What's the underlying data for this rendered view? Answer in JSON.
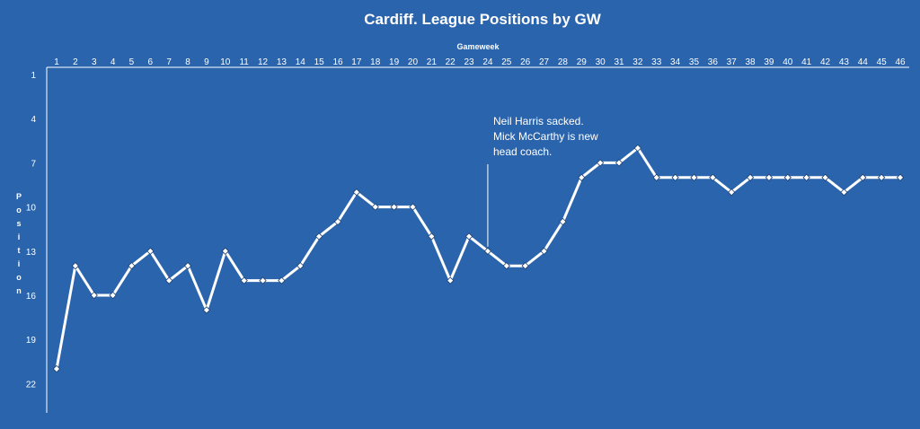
{
  "chart_data": {
    "type": "line",
    "title": "Cardiff. League Positions by GW",
    "xlabel": "Gameweek",
    "ylabel": "Position",
    "x": [
      1,
      2,
      3,
      4,
      5,
      6,
      7,
      8,
      9,
      10,
      11,
      12,
      13,
      14,
      15,
      16,
      17,
      18,
      19,
      20,
      21,
      22,
      23,
      24,
      25,
      26,
      27,
      28,
      29,
      30,
      31,
      32,
      33,
      34,
      35,
      36,
      37,
      38,
      39,
      40,
      41,
      42,
      43,
      44,
      45,
      46
    ],
    "series": [
      {
        "values": [
          21,
          14,
          16,
          16,
          14,
          13,
          15,
          14,
          17,
          13,
          15,
          15,
          15,
          14,
          12,
          11,
          9,
          10,
          10,
          10,
          12,
          15,
          12,
          13,
          14,
          14,
          13,
          11,
          8,
          7,
          7,
          6,
          8,
          8,
          8,
          8,
          9,
          8,
          8,
          8,
          8,
          8,
          9,
          8,
          8,
          8
        ]
      }
    ],
    "yticks": [
      1,
      4,
      7,
      10,
      13,
      16,
      19,
      22
    ],
    "ylim": [
      1,
      24
    ],
    "y_inverted": true,
    "x_axis_position": "top",
    "grid": false,
    "legend": "none",
    "annotation": {
      "x": 24,
      "lines": [
        "Neil Harris sacked.",
        "Mick McCarthy is new",
        "head coach."
      ]
    },
    "colors": {
      "background": "#2a64ad",
      "line": "#ffffff",
      "marker_fill": "#ffffff"
    }
  }
}
